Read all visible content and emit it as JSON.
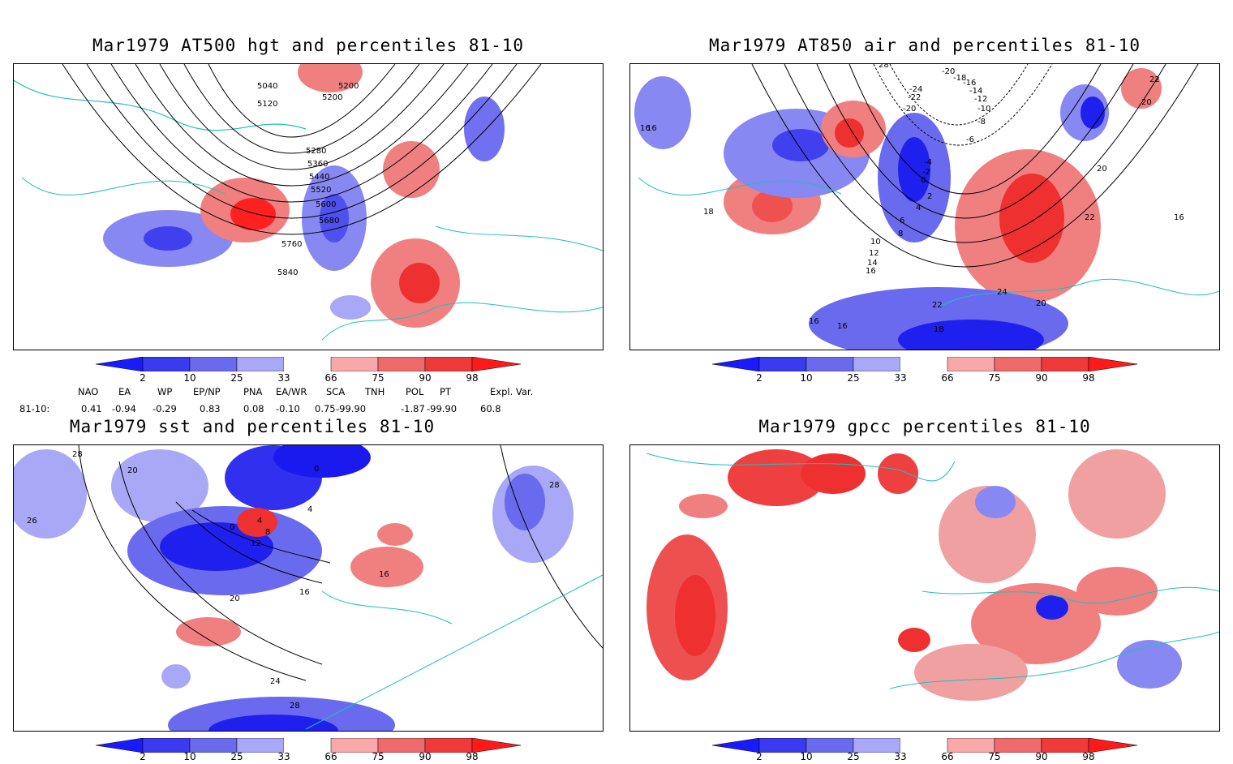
{
  "panels": [
    {
      "id": "p1",
      "title": "Mar1979 AT500 hgt and percentiles 81-10",
      "contour_labels": [
        "5040",
        "5120",
        "5200",
        "5200",
        "5280",
        "5360",
        "5440",
        "5520",
        "5600",
        "5680",
        "5760",
        "5840"
      ]
    },
    {
      "id": "p2",
      "title": "Mar1979 AT850 air and percentiles 81-10",
      "contour_labels": [
        "16",
        "16",
        "18",
        "10",
        "12",
        "14",
        "16",
        "24",
        "22",
        "20",
        "18",
        "16",
        "16",
        "22",
        "20",
        "16",
        "20",
        "22",
        "-4",
        "-2",
        "0",
        "2",
        "4",
        "6",
        "8",
        "-6",
        "-8",
        "-10",
        "-12",
        "-14",
        "-16",
        "-18",
        "-20",
        "-22",
        "-24",
        "-20",
        "28"
      ]
    },
    {
      "id": "p3",
      "title": "Mar1979 sst and percentiles 81-10",
      "contour_labels": [
        "28",
        "26",
        "20",
        "0",
        "4",
        "8",
        "12",
        "16",
        "20",
        "24",
        "28",
        "0",
        "4",
        "16",
        "28"
      ]
    },
    {
      "id": "p4",
      "title": "Mar1979 gpcc percentiles 81-10",
      "contour_labels": []
    }
  ],
  "colorbar": {
    "ticks": [
      "2",
      "10",
      "25",
      "33",
      "66",
      "75",
      "90",
      "98"
    ],
    "colors": {
      "blue_dark": "#1a1aff",
      "blue1": "#3a3aee",
      "blue2": "#6a6aee",
      "blue3": "#a8a8f6",
      "red1": "#f8a8a8",
      "red2": "#ef6a6a",
      "red3": "#ee3a3a",
      "red_dark": "#ff1a1a"
    }
  },
  "indices": {
    "headers": [
      "NAO",
      "EA",
      "WP",
      "EP/NP",
      "PNA",
      "EA/WR",
      "SCA",
      "TNH",
      "POL",
      "PT",
      "Expl. Var."
    ],
    "row_label": "81-10:",
    "values": [
      "0.41",
      "-0.94",
      "-0.29",
      "0.83",
      "0.08",
      "-0.10",
      "0.75",
      "-99.90",
      "-1.87",
      "-99.90",
      "60.8"
    ]
  },
  "map_colors": {
    "coast": "#1fbfbf",
    "contour": "#000000",
    "grid": "#999999"
  }
}
